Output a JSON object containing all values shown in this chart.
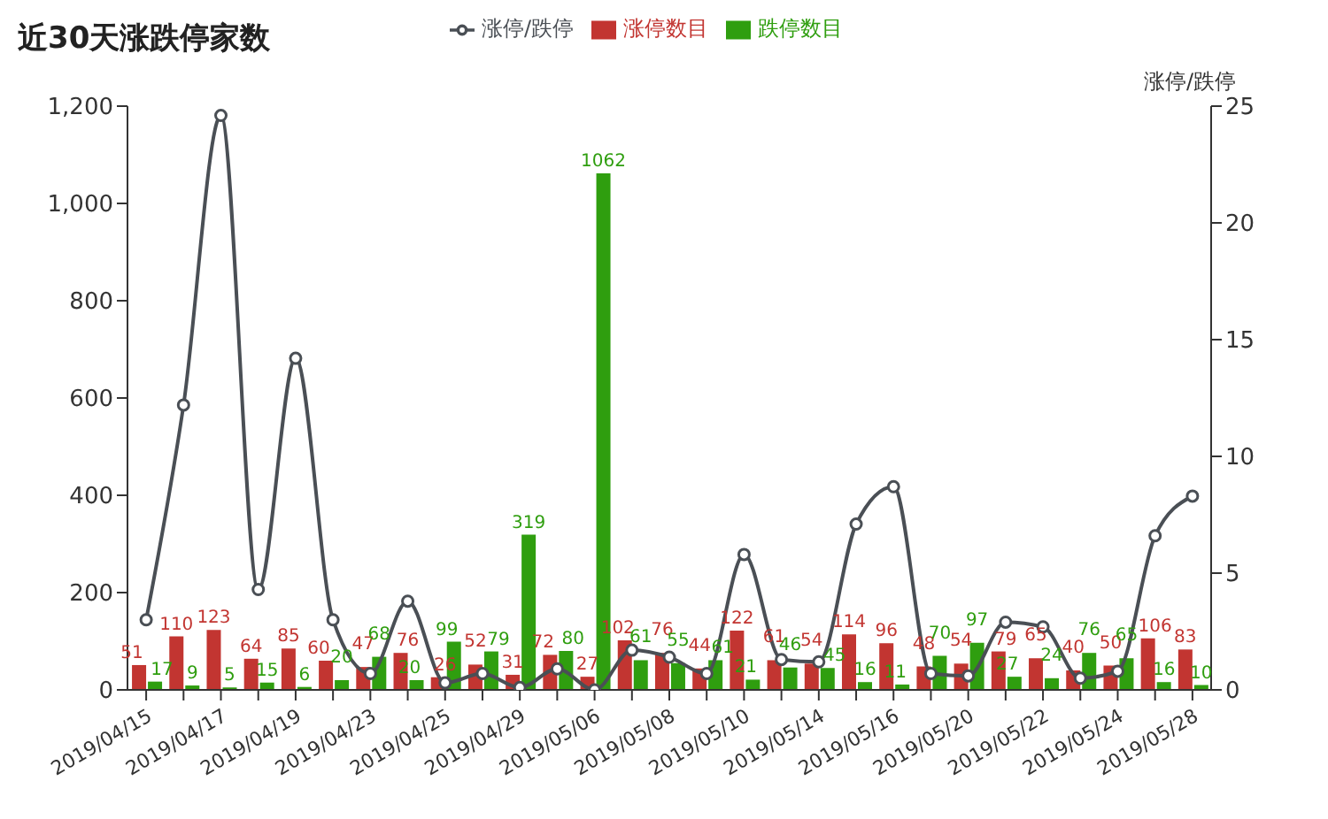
{
  "chart_data": {
    "type": "bar",
    "title": "近30天涨跌停家数",
    "y2label": "涨停/跌停",
    "categories": [
      "2019/04/15",
      null,
      "2019/04/17",
      null,
      "2019/04/19",
      null,
      "2019/04/23",
      null,
      "2019/04/25",
      null,
      "2019/04/29",
      null,
      "2019/05/06",
      null,
      "2019/05/08",
      null,
      "2019/05/10",
      null,
      "2019/05/14",
      null,
      "2019/05/16",
      null,
      "2019/05/20",
      null,
      "2019/05/22",
      null,
      "2019/05/24",
      null,
      "2019/05/28"
    ],
    "series": [
      {
        "name": "涨停数目",
        "color": "#c23531",
        "values": [
          51,
          110,
          123,
          64,
          85,
          60,
          47,
          76,
          26,
          52,
          31,
          72,
          27,
          102,
          76,
          44,
          122,
          61,
          54,
          114,
          96,
          48,
          54,
          79,
          65,
          40,
          50,
          106,
          83
        ],
        "value_labels": [
          "51",
          "110",
          "123",
          "64",
          "85",
          "60",
          "47",
          "76",
          "26",
          "52",
          "31",
          "72",
          "27",
          "102",
          "76",
          "44",
          "122",
          "61",
          "54",
          "114",
          "96",
          "48",
          "54",
          "79",
          "65",
          "40",
          "50",
          "106",
          "83"
        ]
      },
      {
        "name": "跌停数目",
        "color": "#2f9e0f",
        "values": [
          17,
          9,
          5,
          15,
          6,
          20,
          68,
          20,
          99,
          79,
          319,
          80,
          1062,
          61,
          55,
          61,
          21,
          46,
          45,
          16,
          11,
          70,
          97,
          27,
          24,
          76,
          65,
          16,
          10
        ],
        "value_labels": [
          "17",
          "9",
          "5",
          "15",
          "6",
          "20",
          "68",
          "20",
          "99",
          "79",
          "319",
          "80",
          "1062",
          "61",
          "55",
          "61",
          "21",
          "46",
          "45",
          "16",
          "11",
          "70",
          "97",
          "27",
          "24",
          "76",
          "65",
          "16",
          "10"
        ]
      },
      {
        "name": "涨停/跌停",
        "type": "line",
        "axis": "y2",
        "color": "#4a4f55",
        "marker": "circle",
        "values": [
          3.0,
          12.2,
          24.6,
          4.3,
          14.2,
          3.0,
          0.7,
          3.8,
          0.3,
          0.7,
          0.1,
          0.9,
          0.0,
          1.7,
          1.4,
          0.7,
          5.8,
          1.3,
          1.2,
          7.1,
          8.7,
          0.7,
          0.6,
          2.9,
          2.7,
          0.5,
          0.8,
          6.6,
          8.3
        ]
      }
    ],
    "ylim": [
      0,
      1200
    ],
    "yticks": [
      0,
      200,
      400,
      600,
      800,
      {
        "value": 1000,
        "label": "1,000"
      },
      {
        "value": 1200,
        "label": "1,200"
      }
    ],
    "y2lim": [
      0,
      25
    ],
    "y2ticks": [
      0,
      5,
      10,
      15,
      20,
      25
    ],
    "grid": false,
    "legend": "top"
  }
}
